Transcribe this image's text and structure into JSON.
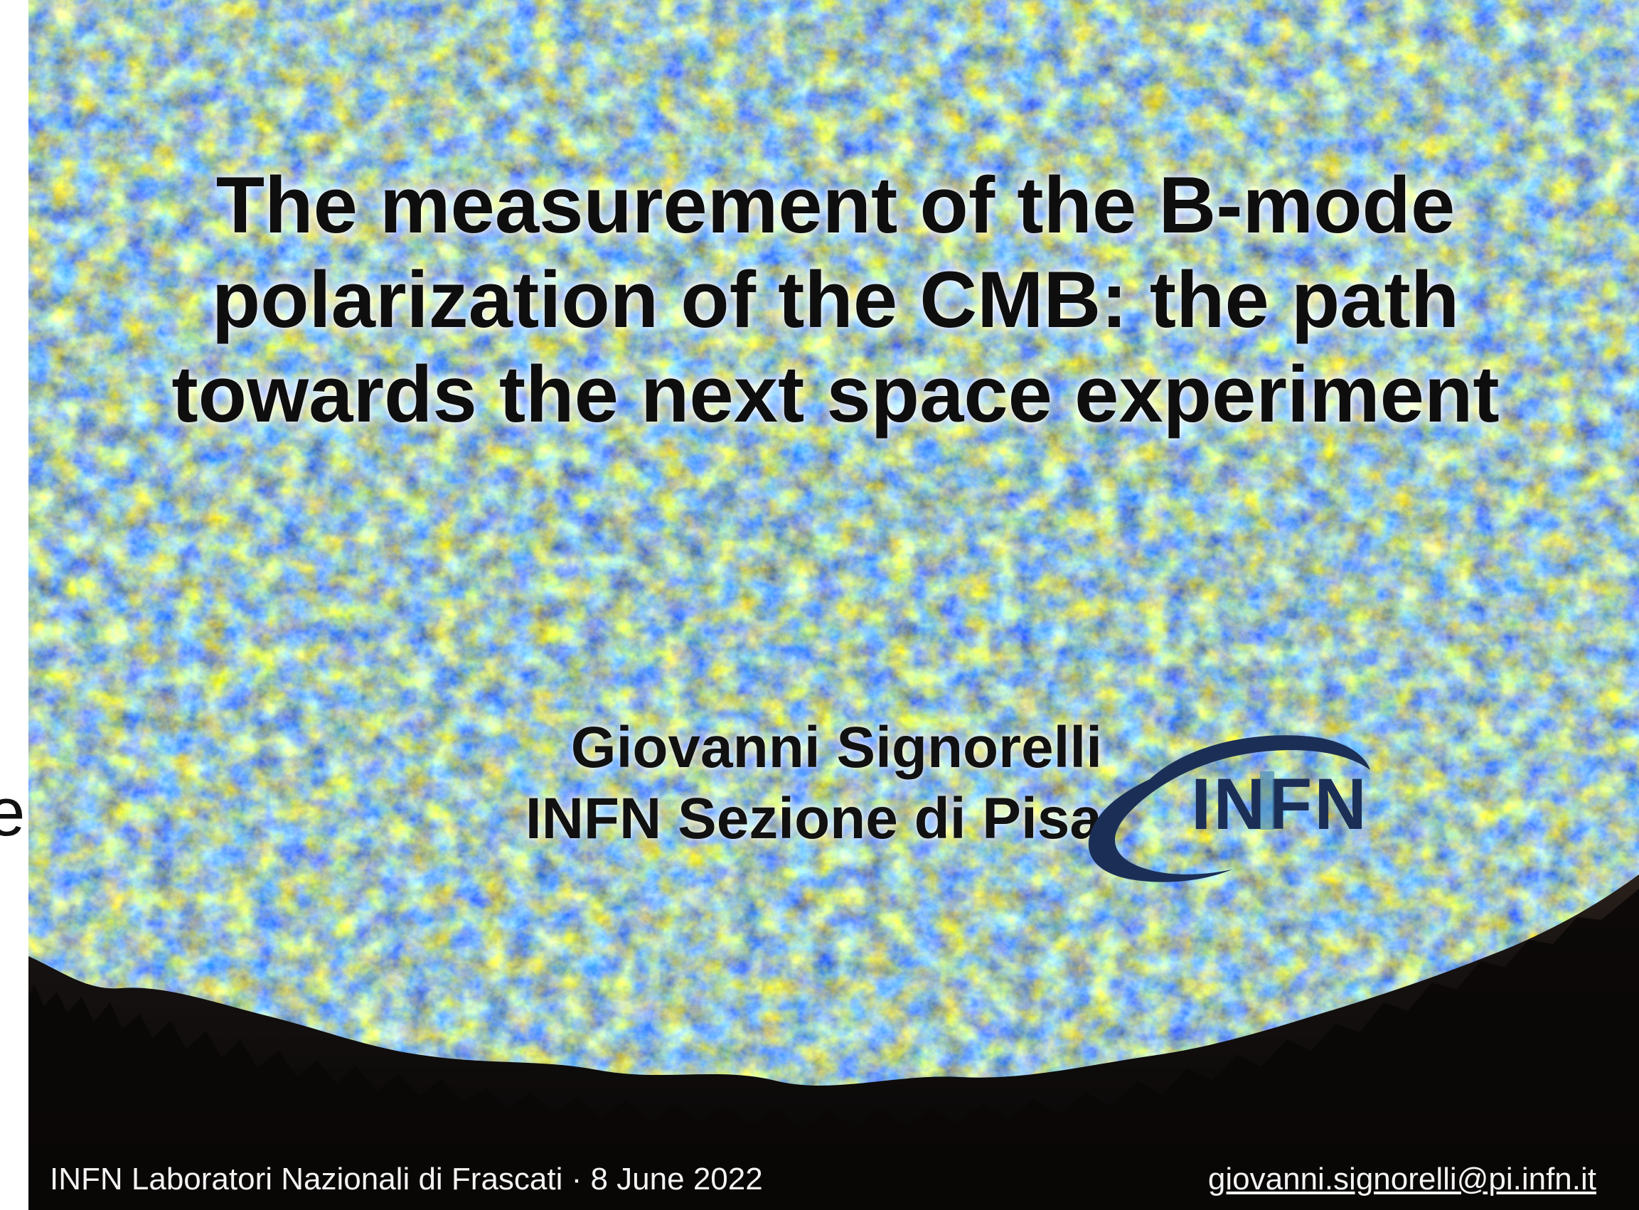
{
  "slide": {
    "stray_letter": "e",
    "title": "The measurement of the B-mode polarization of the CMB: the path towards the next space experiment",
    "author": {
      "name": "Giovanni Signorelli",
      "affiliation": "INFN Sezione di Pisa"
    },
    "logo": {
      "text": "INFN",
      "icon": "infn-logo-icon",
      "colors": {
        "primary": "#1b2f56",
        "accent": "#4a8ab5"
      }
    },
    "footer": {
      "left": "INFN Laboratori Nazionali di Frascati · 8 June 2022",
      "right": "giovanni.signorelli@pi.infn.it"
    },
    "colors": {
      "cmb_blue": "#4f84e3",
      "cmb_light_blue": "#a7c8f1",
      "cmb_orange": "#eb9a4c",
      "cmb_red": "#c8573a",
      "foreground_black": "#0b0908"
    }
  }
}
